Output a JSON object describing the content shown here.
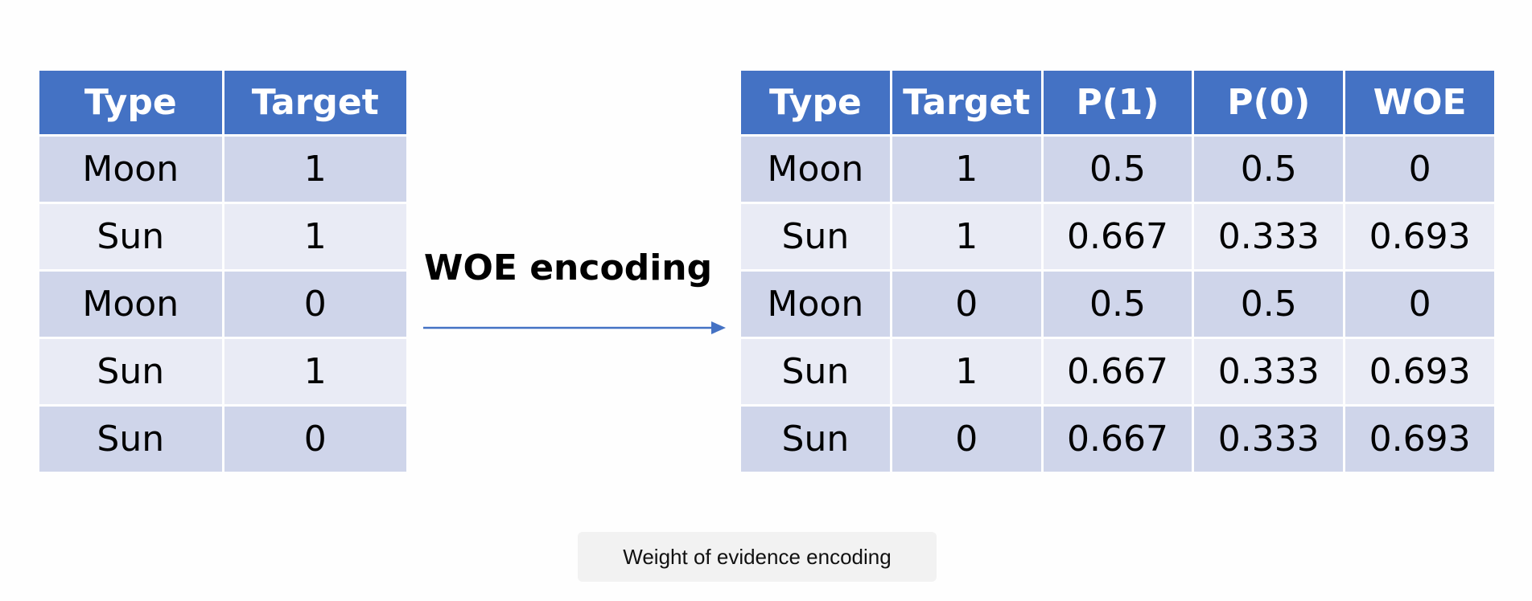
{
  "input_table": {
    "headers": [
      "Type",
      "Target"
    ],
    "rows": [
      [
        "Moon",
        "1"
      ],
      [
        "Sun",
        "1"
      ],
      [
        "Moon",
        "0"
      ],
      [
        "Sun",
        "1"
      ],
      [
        "Sun",
        "0"
      ]
    ]
  },
  "transform": {
    "label": "WOE encoding",
    "arrow_color": "#4472c4"
  },
  "output_table": {
    "headers": [
      "Type",
      "Target",
      "P(1)",
      "P(0)",
      "WOE"
    ],
    "rows": [
      [
        "Moon",
        "1",
        "0.5",
        "0.5",
        "0"
      ],
      [
        "Sun",
        "1",
        "0.667",
        "0.333",
        "0.693"
      ],
      [
        "Moon",
        "0",
        "0.5",
        "0.5",
        "0"
      ],
      [
        "Sun",
        "1",
        "0.667",
        "0.333",
        "0.693"
      ],
      [
        "Sun",
        "0",
        "0.667",
        "0.333",
        "0.693"
      ]
    ]
  },
  "caption": "Weight of evidence encoding",
  "colors": {
    "header": "#4472c4",
    "row_dark": "#cfd5ea",
    "row_light": "#e9ebf5"
  }
}
